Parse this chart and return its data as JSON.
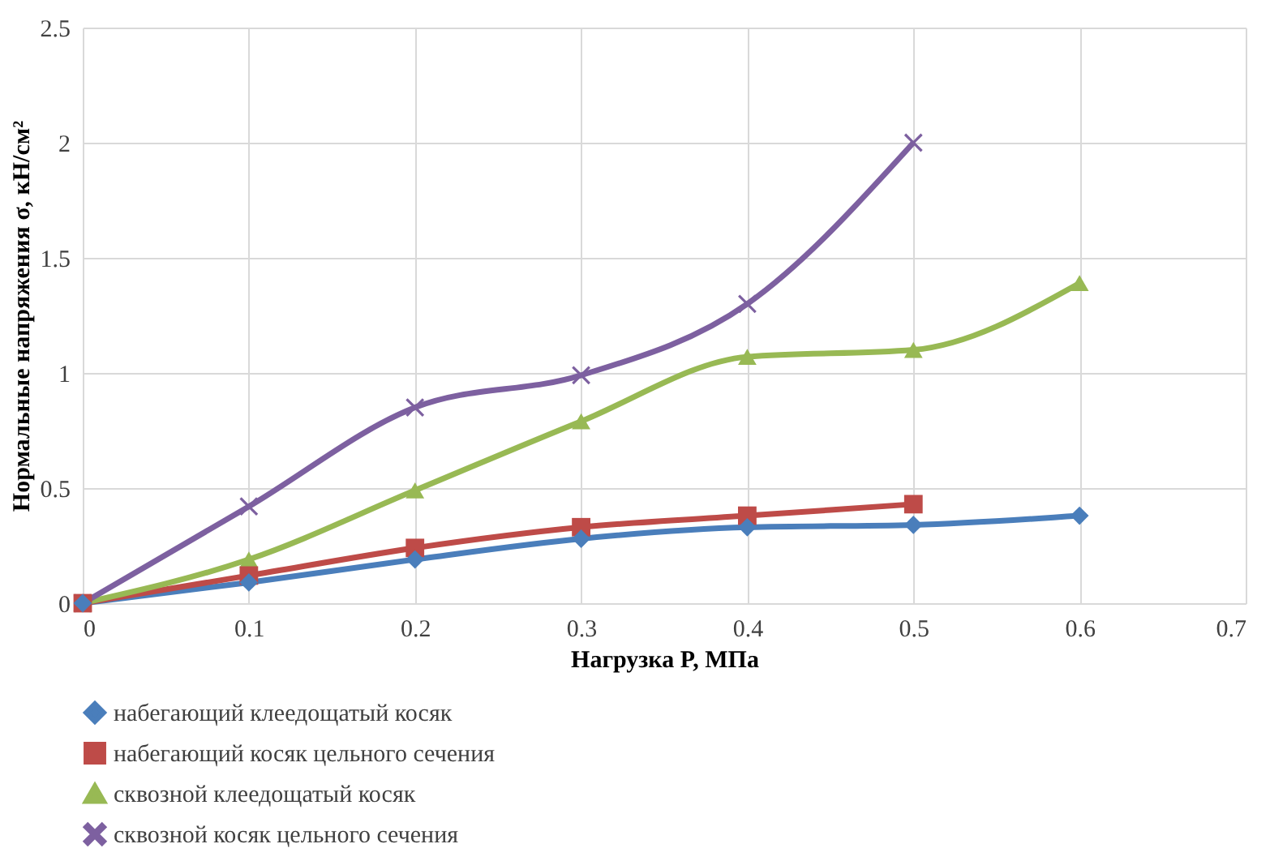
{
  "chart_data": {
    "type": "line",
    "xlabel": "Нагрузка P, МПа",
    "ylabel": "Нормальные напряжения σ, кН/см²",
    "x": [
      0,
      0.1,
      0.2,
      0.3,
      0.4,
      0.5,
      0.6
    ],
    "xlim": [
      0,
      0.7
    ],
    "xticks": [
      0,
      0.1,
      0.2,
      0.3,
      0.4,
      0.5,
      0.6,
      0.7
    ],
    "ylim": [
      0,
      2.5
    ],
    "yticks": [
      0,
      0.5,
      1,
      1.5,
      2,
      2.5
    ],
    "grid": true,
    "legend": "bottom",
    "series": [
      {
        "name": "набегающий клеедощатый косяк",
        "color": "#4a7ebb",
        "marker": "diamond",
        "values": [
          0,
          0.09,
          0.19,
          0.28,
          0.33,
          0.34,
          0.38
        ]
      },
      {
        "name": "набегающий косяк цельного сечения",
        "color": "#be4b48",
        "marker": "square",
        "values": [
          0,
          0.12,
          0.24,
          0.33,
          0.38,
          0.43,
          null
        ]
      },
      {
        "name": "сквозной клеедощатый косяк",
        "color": "#98b954",
        "marker": "triangle",
        "values": [
          0,
          0.19,
          0.49,
          0.79,
          1.07,
          1.1,
          1.39
        ]
      },
      {
        "name": "сквозной косяк цельного сечения",
        "color": "#7d60a0",
        "marker": "cross",
        "values": [
          0,
          0.42,
          0.85,
          0.99,
          1.3,
          2.0,
          null
        ]
      }
    ]
  }
}
